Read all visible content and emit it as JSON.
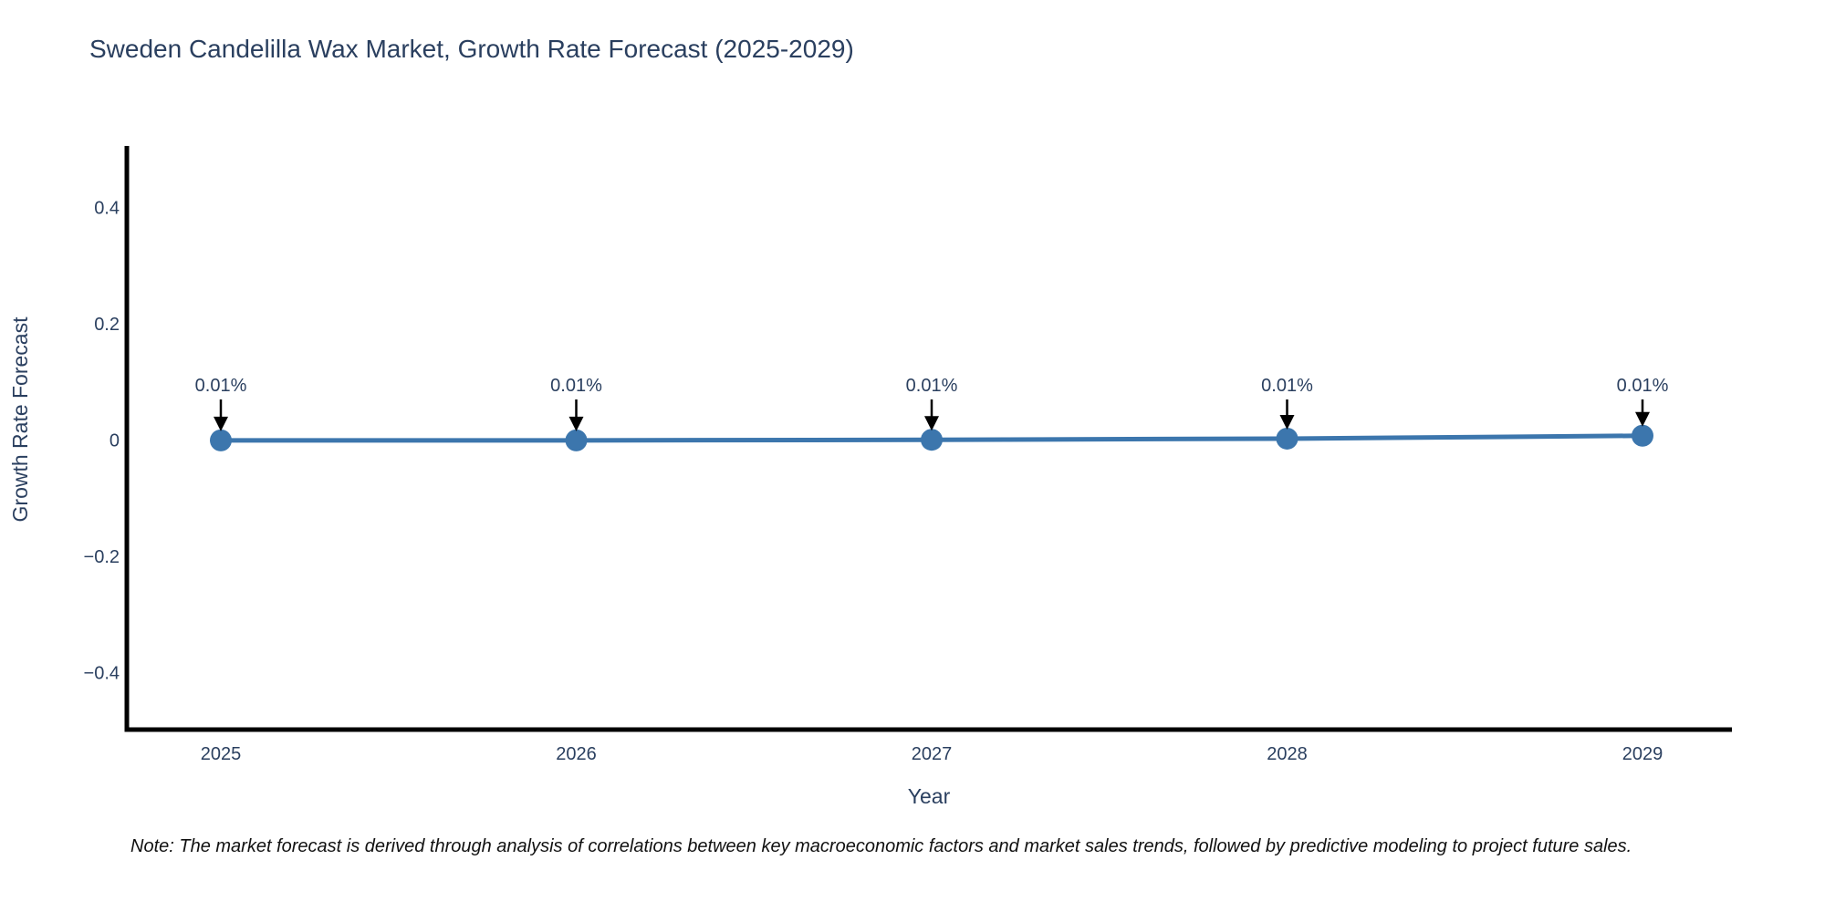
{
  "note": "Note: The market forecast is derived through analysis of correlations between key macroeconomic factors and market sales trends, followed by predictive modeling to project future sales.",
  "chart_data": {
    "type": "line",
    "title": "Sweden Candelilla Wax Market, Growth Rate Forecast (2025-2029)",
    "xlabel": "Year",
    "ylabel": "Growth Rate Forecast",
    "x": [
      2025,
      2026,
      2027,
      2028,
      2029
    ],
    "series": [
      {
        "name": "Growth Rate Forecast",
        "values": [
          0.01,
          0.01,
          0.01,
          0.01,
          0.01
        ],
        "point_labels": [
          "0.01%",
          "0.01%",
          "0.01%",
          "0.01%",
          "0.01%"
        ]
      }
    ],
    "values_plotted_axis_units_est": [
      0.001,
      0.001,
      0.002,
      0.004,
      0.009
    ],
    "yticks": [
      {
        "v": 0.4,
        "label": "0.4"
      },
      {
        "v": 0.2,
        "label": "0.2"
      },
      {
        "v": 0,
        "label": "0"
      },
      {
        "v": -0.2,
        "label": "−0.2"
      },
      {
        "v": -0.4,
        "label": "−0.4"
      }
    ],
    "ylim": [
      -0.5,
      0.51
    ],
    "grid": false,
    "legend": "none",
    "marker_style": "circle",
    "annotation_arrows": true,
    "colors": {
      "line": "#3c76ad",
      "marker": "#3c76ad",
      "axis": "#000000",
      "text": "#2a3f5f",
      "annotation_arrow": "#000000",
      "note_text": "#111111",
      "background": "#ffffff"
    }
  }
}
